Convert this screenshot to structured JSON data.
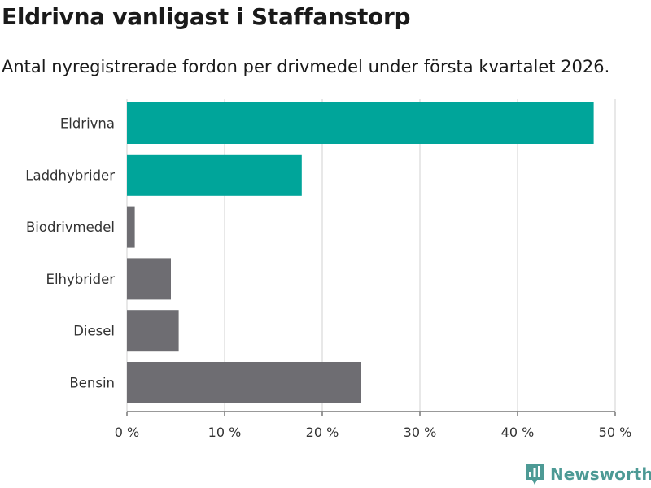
{
  "title": "Eldrivna vanligast i Staffanstorp",
  "subtitle": "Antal nyregistrerade fordon per drivmedel under första kvartalet 2026.",
  "brand": "Newsworthy",
  "colors": {
    "highlight": "#00a59a",
    "default": "#6e6d72",
    "grid": "#e0e0e0",
    "brand": "#4d9a95"
  },
  "chart_data": {
    "type": "bar",
    "orientation": "horizontal",
    "categories": [
      "Eldrivna",
      "Laddhybrider",
      "Biodrivmedel",
      "Elhybrider",
      "Diesel",
      "Bensin"
    ],
    "values": [
      47.8,
      17.9,
      0.8,
      4.5,
      5.3,
      24.0
    ],
    "highlighted": [
      "Eldrivna",
      "Laddhybrider"
    ],
    "xlim": [
      0,
      50
    ],
    "xticks": [
      0,
      10,
      20,
      30,
      40,
      50
    ],
    "xtick_labels": [
      "0 %",
      "10 %",
      "20 %",
      "30 %",
      "40 %",
      "50 %"
    ],
    "grid": true
  }
}
